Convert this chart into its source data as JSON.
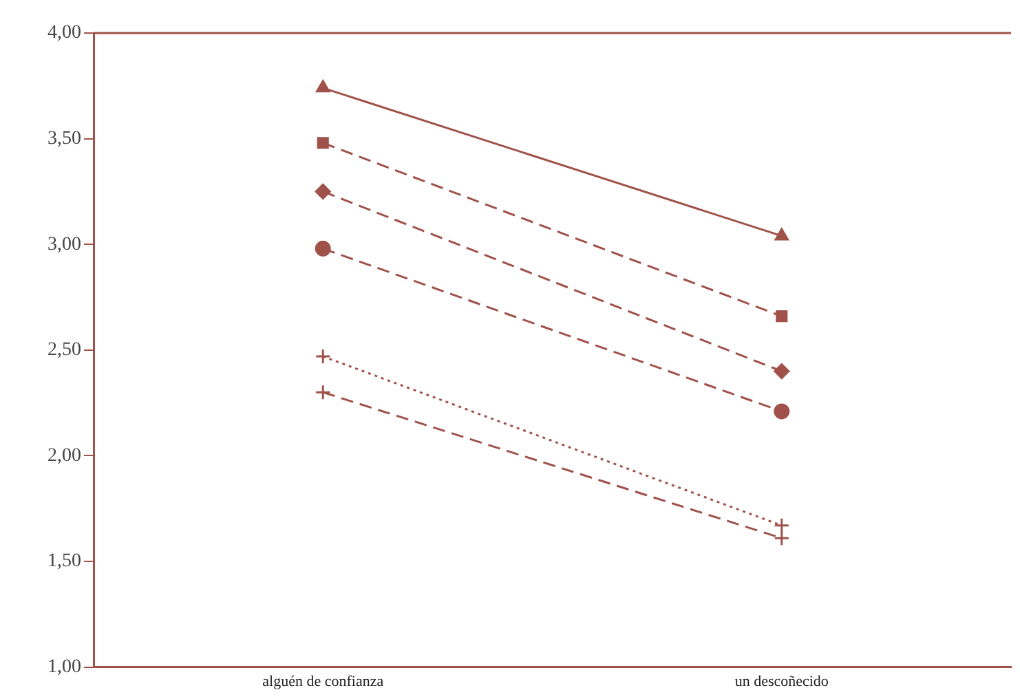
{
  "chart_data": {
    "type": "line",
    "categories": [
      "alguén de confianza",
      "un descoñecido"
    ],
    "ylim": [
      1,
      4
    ],
    "yticks": [
      {
        "value": 1,
        "label": "1,00"
      },
      {
        "value": 1.5,
        "label": "1,50"
      },
      {
        "value": 2,
        "label": "2,00"
      },
      {
        "value": 2.5,
        "label": "2,50"
      },
      {
        "value": 3,
        "label": "3,00"
      },
      {
        "value": 3.5,
        "label": "3,50"
      },
      {
        "value": 4,
        "label": "4,00"
      }
    ],
    "grid": false,
    "legend": false,
    "series": [
      {
        "color": "#a0524a",
        "values": [
          3.74,
          3.04
        ],
        "marker": "triangle",
        "line_style": "solid"
      },
      {
        "color": "#a0524a",
        "values": [
          3.48,
          2.66
        ],
        "marker": "square",
        "line_style": "dashed"
      },
      {
        "color": "#a0524a",
        "values": [
          3.25,
          2.4
        ],
        "marker": "diamond",
        "line_style": "dashed"
      },
      {
        "color": "#a0524a",
        "values": [
          2.98,
          2.21
        ],
        "marker": "circle",
        "line_style": "dashed"
      },
      {
        "color": "#a0524a",
        "values": [
          2.47,
          1.67
        ],
        "marker": "cross",
        "line_style": "dotted"
      },
      {
        "color": "#a0524a",
        "values": [
          2.3,
          1.61
        ],
        "marker": "cross",
        "line_style": "dashed"
      }
    ]
  }
}
